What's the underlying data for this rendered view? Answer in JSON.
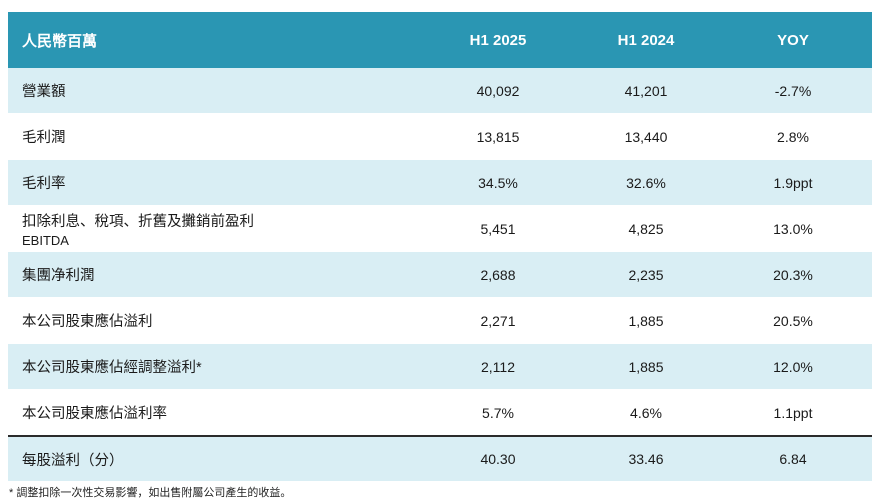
{
  "table": {
    "headers": [
      "人民幣百萬",
      "H1 2025",
      "H1 2024",
      "YOY"
    ],
    "rows": [
      {
        "label": "營業額",
        "label2": "",
        "h1_2025": "40,092",
        "h1_2024": "41,201",
        "yoy": "-2.7%"
      },
      {
        "label": "毛利潤",
        "label2": "",
        "h1_2025": "13,815",
        "h1_2024": "13,440",
        "yoy": "2.8%"
      },
      {
        "label": "毛利率",
        "label2": "",
        "h1_2025": "34.5%",
        "h1_2024": "32.6%",
        "yoy": "1.9ppt"
      },
      {
        "label": "扣除利息、稅項、折舊及攤銷前盈利",
        "label2": "EBITDA",
        "h1_2025": "5,451",
        "h1_2024": "4,825",
        "yoy": "13.0%"
      },
      {
        "label": "集團净利潤",
        "label2": "",
        "h1_2025": "2,688",
        "h1_2024": "2,235",
        "yoy": "20.3%"
      },
      {
        "label": "本公司股東應佔溢利",
        "label2": "",
        "h1_2025": "2,271",
        "h1_2024": "1,885",
        "yoy": "20.5%"
      },
      {
        "label": "本公司股東應佔經調整溢利*",
        "label2": "",
        "h1_2025": "2,112",
        "h1_2024": "1,885",
        "yoy": "12.0%"
      },
      {
        "label": "本公司股東應佔溢利率",
        "label2": "",
        "h1_2025": "5.7%",
        "h1_2024": "4.6%",
        "yoy": "1.1ppt"
      },
      {
        "label": "每股溢利（分）",
        "label2": "",
        "h1_2025": "40.30",
        "h1_2024": "33.46",
        "yoy": "6.84"
      }
    ]
  },
  "footnote": "* 調整扣除一次性交易影響，如出售附屬公司產生的收益。",
  "colors": {
    "header_bg": "#2a96b3",
    "alt_row_bg": "#d9eef4",
    "header_text": "#ffffff"
  }
}
